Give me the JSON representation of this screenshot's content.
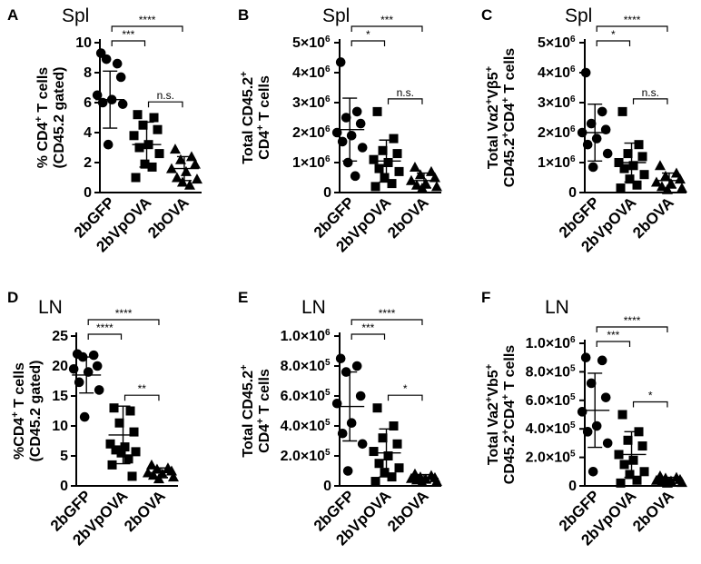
{
  "chart_data": [
    {
      "panel": "A",
      "title": "Spl",
      "type": "scatter",
      "ylabel": [
        "% CD4",
        "+",
        " T cells",
        "(CD45.2 gated)"
      ],
      "ylim": [
        0,
        10
      ],
      "yticks": [
        0,
        2,
        4,
        6,
        8,
        10
      ],
      "ytick_labels": [
        "0",
        "2",
        "4",
        "6",
        "8",
        "10"
      ],
      "categories": [
        "2bGFP",
        "2bVpOVA",
        "2bOVA"
      ],
      "markers": [
        "circle",
        "square",
        "triangle"
      ],
      "series": [
        {
          "name": "2bGFP",
          "mean": 6.2,
          "sd": 1.9,
          "values": [
            9.3,
            8.6,
            8.9,
            7.7,
            6.5,
            6.2,
            6.0,
            5.9,
            3.2
          ]
        },
        {
          "name": "2bVpOVA",
          "mean": 3.2,
          "sd": 1.5,
          "values": [
            5.2,
            5.0,
            4.5,
            4.2,
            3.8,
            3.2,
            3.0,
            2.6,
            1.9,
            1.7,
            1.0
          ]
        },
        {
          "name": "2bOVA",
          "mean": 1.6,
          "sd": 0.8,
          "values": [
            2.9,
            2.4,
            2.2,
            1.9,
            1.6,
            1.4,
            1.0,
            0.9,
            0.7,
            0.5
          ]
        }
      ],
      "comparisons": [
        {
          "from": 0,
          "to": 1,
          "label": "***"
        },
        {
          "from": 0,
          "to": 2,
          "label": "****"
        },
        {
          "from": 1,
          "to": 2,
          "label": "n.s."
        }
      ]
    },
    {
      "panel": "B",
      "title": "Spl",
      "type": "scatter",
      "ylabel": [
        "Total CD45.2",
        "+",
        "CD4",
        "+",
        " T cells"
      ],
      "ylim": [
        0,
        5000000
      ],
      "yticks": [
        0,
        1000000,
        2000000,
        3000000,
        4000000,
        5000000
      ],
      "ytick_labels": [
        "0",
        "1×10",
        "2×10",
        "3×10",
        "4×10",
        "5×10"
      ],
      "ytick_exp": "6",
      "categories": [
        "2bGFP",
        "2bVpOVA",
        "2bOVA"
      ],
      "markers": [
        "circle",
        "square",
        "triangle"
      ],
      "series": [
        {
          "name": "2bGFP",
          "mean": 2100000,
          "sd": 1050000,
          "values": [
            4350000,
            2700000,
            2500000,
            2300000,
            2000000,
            1900000,
            1700000,
            1500000,
            1000000,
            550000
          ]
        },
        {
          "name": "2bVpOVA",
          "mean": 1050000,
          "sd": 700000,
          "values": [
            2700000,
            1800000,
            1400000,
            1300000,
            1100000,
            1000000,
            800000,
            700000,
            500000,
            300000,
            200000
          ]
        },
        {
          "name": "2bOVA",
          "mean": 400000,
          "sd": 250000,
          "values": [
            850000,
            700000,
            600000,
            500000,
            400000,
            300000,
            250000,
            200000,
            150000
          ]
        }
      ],
      "comparisons": [
        {
          "from": 0,
          "to": 1,
          "label": "*"
        },
        {
          "from": 0,
          "to": 2,
          "label": "***"
        },
        {
          "from": 1,
          "to": 2,
          "label": "n.s."
        }
      ]
    },
    {
      "panel": "C",
      "title": "Spl",
      "type": "scatter",
      "ylabel": [
        "Total Vα2",
        "+",
        "Vβ5",
        "+",
        "CD45.2",
        "+",
        "CD4",
        "+",
        " T cells"
      ],
      "ylim": [
        0,
        5000000
      ],
      "yticks": [
        0,
        1000000,
        2000000,
        3000000,
        4000000,
        5000000
      ],
      "ytick_labels": [
        "0",
        "1×10",
        "2×10",
        "3×10",
        "4×10",
        "5×10"
      ],
      "ytick_exp": "6",
      "categories": [
        "2bGFP",
        "2bVpOVA",
        "2bOVA"
      ],
      "markers": [
        "circle",
        "square",
        "triangle"
      ],
      "series": [
        {
          "name": "2bGFP",
          "mean": 2000000,
          "sd": 950000,
          "values": [
            4000000,
            2700000,
            2300000,
            2100000,
            2000000,
            1800000,
            1600000,
            1300000,
            850000
          ]
        },
        {
          "name": "2bVpOVA",
          "mean": 1000000,
          "sd": 650000,
          "values": [
            2700000,
            1600000,
            1300000,
            1200000,
            1000000,
            900000,
            800000,
            600000,
            450000,
            250000,
            150000
          ]
        },
        {
          "name": "2bOVA",
          "mean": 400000,
          "sd": 250000,
          "values": [
            900000,
            650000,
            550000,
            450000,
            350000,
            300000,
            200000,
            150000,
            100000
          ]
        }
      ],
      "comparisons": [
        {
          "from": 0,
          "to": 1,
          "label": "*"
        },
        {
          "from": 0,
          "to": 2,
          "label": "****"
        },
        {
          "from": 1,
          "to": 2,
          "label": "n.s."
        }
      ]
    },
    {
      "panel": "D",
      "title": "LN",
      "type": "scatter",
      "ylabel": [
        "%CD4",
        "+",
        " T cells",
        "(CD45.2 gated)"
      ],
      "ylim": [
        0,
        25
      ],
      "yticks": [
        0,
        5,
        10,
        15,
        20,
        25
      ],
      "ytick_labels": [
        "0",
        "5",
        "10",
        "15",
        "20",
        "25"
      ],
      "categories": [
        "2bGFP",
        "2bVpOVA",
        "2bOVA"
      ],
      "markers": [
        "circle",
        "square",
        "triangle"
      ],
      "series": [
        {
          "name": "2bGFP",
          "mean": 18.5,
          "sd": 3.0,
          "values": [
            22.0,
            21.8,
            21.5,
            20.0,
            19.5,
            19.0,
            17.3,
            16.0,
            11.5
          ]
        },
        {
          "name": "2bVpOVA",
          "mean": 8.5,
          "sd": 4.8,
          "values": [
            13.0,
            12.5,
            10.5,
            9.0,
            7.0,
            6.5,
            6.0,
            5.7,
            5.5,
            4.5,
            3.5,
            1.6
          ]
        },
        {
          "name": "2bOVA",
          "mean": 2.2,
          "sd": 0.8,
          "values": [
            3.5,
            3.0,
            2.8,
            2.5,
            2.2,
            2.0,
            1.8,
            1.5,
            1.2
          ]
        }
      ],
      "comparisons": [
        {
          "from": 0,
          "to": 1,
          "label": "****"
        },
        {
          "from": 0,
          "to": 2,
          "label": "****"
        },
        {
          "from": 1,
          "to": 2,
          "label": "**"
        }
      ]
    },
    {
      "panel": "E",
      "title": "LN",
      "type": "scatter",
      "ylabel": [
        "Total CD45.2",
        "+",
        "CD4",
        "+",
        " T cells"
      ],
      "ylim": [
        0,
        1000000
      ],
      "yticks": [
        0,
        200000,
        400000,
        600000,
        800000,
        1000000
      ],
      "ytick_labels": [
        "0",
        "2.0×10",
        "4.0×10",
        "6.0×10",
        "8.0×10",
        "1.0×10"
      ],
      "ytick_exps": [
        "",
        "5",
        "5",
        "5",
        "5",
        "6"
      ],
      "categories": [
        "2bGFP",
        "2bVpOVA",
        "2bOVA"
      ],
      "markers": [
        "circle",
        "square",
        "triangle"
      ],
      "series": [
        {
          "name": "2bGFP",
          "mean": 530000,
          "sd": 230000,
          "values": [
            850000,
            800000,
            760000,
            600000,
            550000,
            420000,
            350000,
            280000,
            100000
          ]
        },
        {
          "name": "2bVpOVA",
          "mean": 220000,
          "sd": 160000,
          "values": [
            520000,
            400000,
            320000,
            280000,
            230000,
            200000,
            150000,
            120000,
            90000,
            60000,
            30000
          ]
        },
        {
          "name": "2bOVA",
          "mean": 50000,
          "sd": 25000,
          "values": [
            80000,
            70000,
            60000,
            55000,
            50000,
            45000,
            40000,
            30000,
            25000
          ]
        }
      ],
      "comparisons": [
        {
          "from": 0,
          "to": 1,
          "label": "***"
        },
        {
          "from": 0,
          "to": 2,
          "label": "****"
        },
        {
          "from": 1,
          "to": 2,
          "label": "*"
        }
      ]
    },
    {
      "panel": "F",
      "title": "LN",
      "type": "scatter",
      "ylabel": [
        "Total Va2",
        "+",
        "Vb5",
        "+",
        "CD45.2",
        "+",
        "CD4",
        "+",
        " T cells"
      ],
      "ylim": [
        0,
        1000000
      ],
      "yticks": [
        0,
        200000,
        400000,
        600000,
        800000,
        1000000
      ],
      "ytick_labels": [
        "0",
        "2.0×10",
        "4.0×10",
        "6.0×10",
        "8.0×10",
        "1.0×10"
      ],
      "ytick_exps": [
        "",
        "5",
        "5",
        "5",
        "5",
        "6"
      ],
      "categories": [
        "2bGFP",
        "2bVpOVA",
        "2bOVA"
      ],
      "markers": [
        "circle",
        "square",
        "triangle"
      ],
      "series": [
        {
          "name": "2bGFP",
          "mean": 530000,
          "sd": 260000,
          "values": [
            900000,
            880000,
            720000,
            620000,
            520000,
            420000,
            380000,
            300000,
            100000
          ]
        },
        {
          "name": "2bVpOVA",
          "mean": 220000,
          "sd": 160000,
          "values": [
            500000,
            380000,
            320000,
            280000,
            220000,
            180000,
            150000,
            100000,
            80000,
            40000,
            20000
          ]
        },
        {
          "name": "2bOVA",
          "mean": 40000,
          "sd": 20000,
          "values": [
            70000,
            60000,
            55000,
            45000,
            40000,
            35000,
            30000,
            25000,
            20000
          ]
        }
      ],
      "comparisons": [
        {
          "from": 0,
          "to": 1,
          "label": "***"
        },
        {
          "from": 0,
          "to": 2,
          "label": "****"
        },
        {
          "from": 1,
          "to": 2,
          "label": "*"
        }
      ]
    }
  ]
}
